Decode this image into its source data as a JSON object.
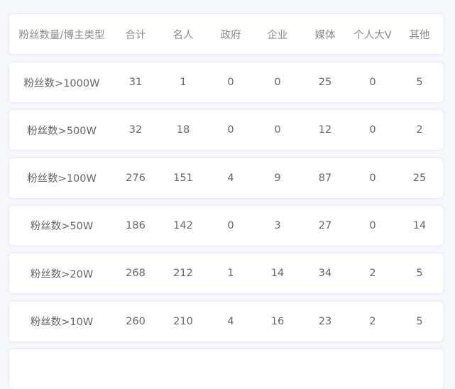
{
  "headers": [
    "粉丝数量/博主类型",
    "合计",
    "名人",
    "政府",
    "企业",
    "媒体",
    "个人大V",
    "其他"
  ],
  "rows": [
    [
      "粉丝数>1000W",
      "31",
      "1",
      "0",
      "0",
      "25",
      "0",
      "5"
    ],
    [
      "粉丝数>500W",
      "32",
      "18",
      "0",
      "0",
      "12",
      "0",
      "2"
    ],
    [
      "粉丝数>100W",
      "276",
      "151",
      "4",
      "9",
      "87",
      "0",
      "25"
    ],
    [
      "粉丝数>50W",
      "186",
      "142",
      "0",
      "3",
      "27",
      "0",
      "14"
    ],
    [
      "粉丝数>20W",
      "268",
      "212",
      "1",
      "14",
      "34",
      "2",
      "5"
    ],
    [
      "粉丝数>10W",
      "260",
      "210",
      "4",
      "16",
      "23",
      "2",
      "5"
    ]
  ]
}
